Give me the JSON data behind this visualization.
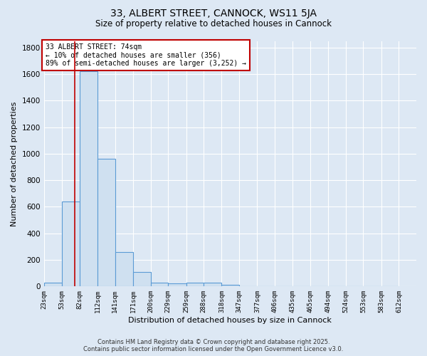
{
  "title_line1": "33, ALBERT STREET, CANNOCK, WS11 5JA",
  "title_line2": "Size of property relative to detached houses in Cannock",
  "xlabel": "Distribution of detached houses by size in Cannock",
  "ylabel": "Number of detached properties",
  "bin_edges": [
    23,
    53,
    82,
    112,
    141,
    171,
    200,
    229,
    259,
    288,
    318,
    347,
    377,
    406,
    435,
    465,
    494,
    524,
    553,
    583,
    612
  ],
  "bar_heights": [
    30,
    640,
    1620,
    960,
    260,
    110,
    30,
    25,
    30,
    30,
    15,
    0,
    0,
    0,
    0,
    0,
    0,
    0,
    0,
    0
  ],
  "bar_color": "#cfe0f0",
  "bar_edge_color": "#5b9bd5",
  "bar_edge_width": 0.8,
  "red_line_x": 74,
  "red_line_color": "#c00000",
  "annotation_text": "33 ALBERT STREET: 74sqm\n← 10% of detached houses are smaller (356)\n89% of semi-detached houses are larger (3,252) →",
  "annotation_box_color": "#ffffff",
  "annotation_box_edge": "#c00000",
  "ylim": [
    0,
    1850
  ],
  "yticks": [
    0,
    200,
    400,
    600,
    800,
    1000,
    1200,
    1400,
    1600,
    1800
  ],
  "background_color": "#dde8f4",
  "grid_color": "#ffffff",
  "footer_line1": "Contains HM Land Registry data © Crown copyright and database right 2025.",
  "footer_line2": "Contains public sector information licensed under the Open Government Licence v3.0."
}
